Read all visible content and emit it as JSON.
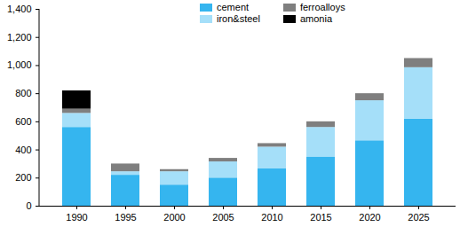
{
  "chart_data": {
    "type": "bar",
    "stacked": true,
    "categories": [
      "1990",
      "1995",
      "2000",
      "2005",
      "2010",
      "2015",
      "2020",
      "2025"
    ],
    "series": [
      {
        "name": "cement",
        "color": "#35b5ef",
        "values": [
          560,
          220,
          150,
          200,
          265,
          350,
          465,
          620
        ]
      },
      {
        "name": "iron&steel",
        "color": "#a5dff9",
        "values": [
          100,
          25,
          95,
          115,
          155,
          210,
          285,
          365
        ]
      },
      {
        "name": "ferroalloys",
        "color": "#7f7f7f",
        "values": [
          30,
          55,
          15,
          25,
          25,
          40,
          50,
          65
        ]
      },
      {
        "name": "amonia",
        "color": "#000000",
        "values": [
          130,
          0,
          0,
          0,
          0,
          0,
          0,
          0
        ]
      }
    ],
    "ylim": [
      0,
      1400
    ],
    "yticks": [
      0,
      200,
      400,
      600,
      800,
      1000,
      1200,
      1400
    ],
    "legend": "top"
  }
}
